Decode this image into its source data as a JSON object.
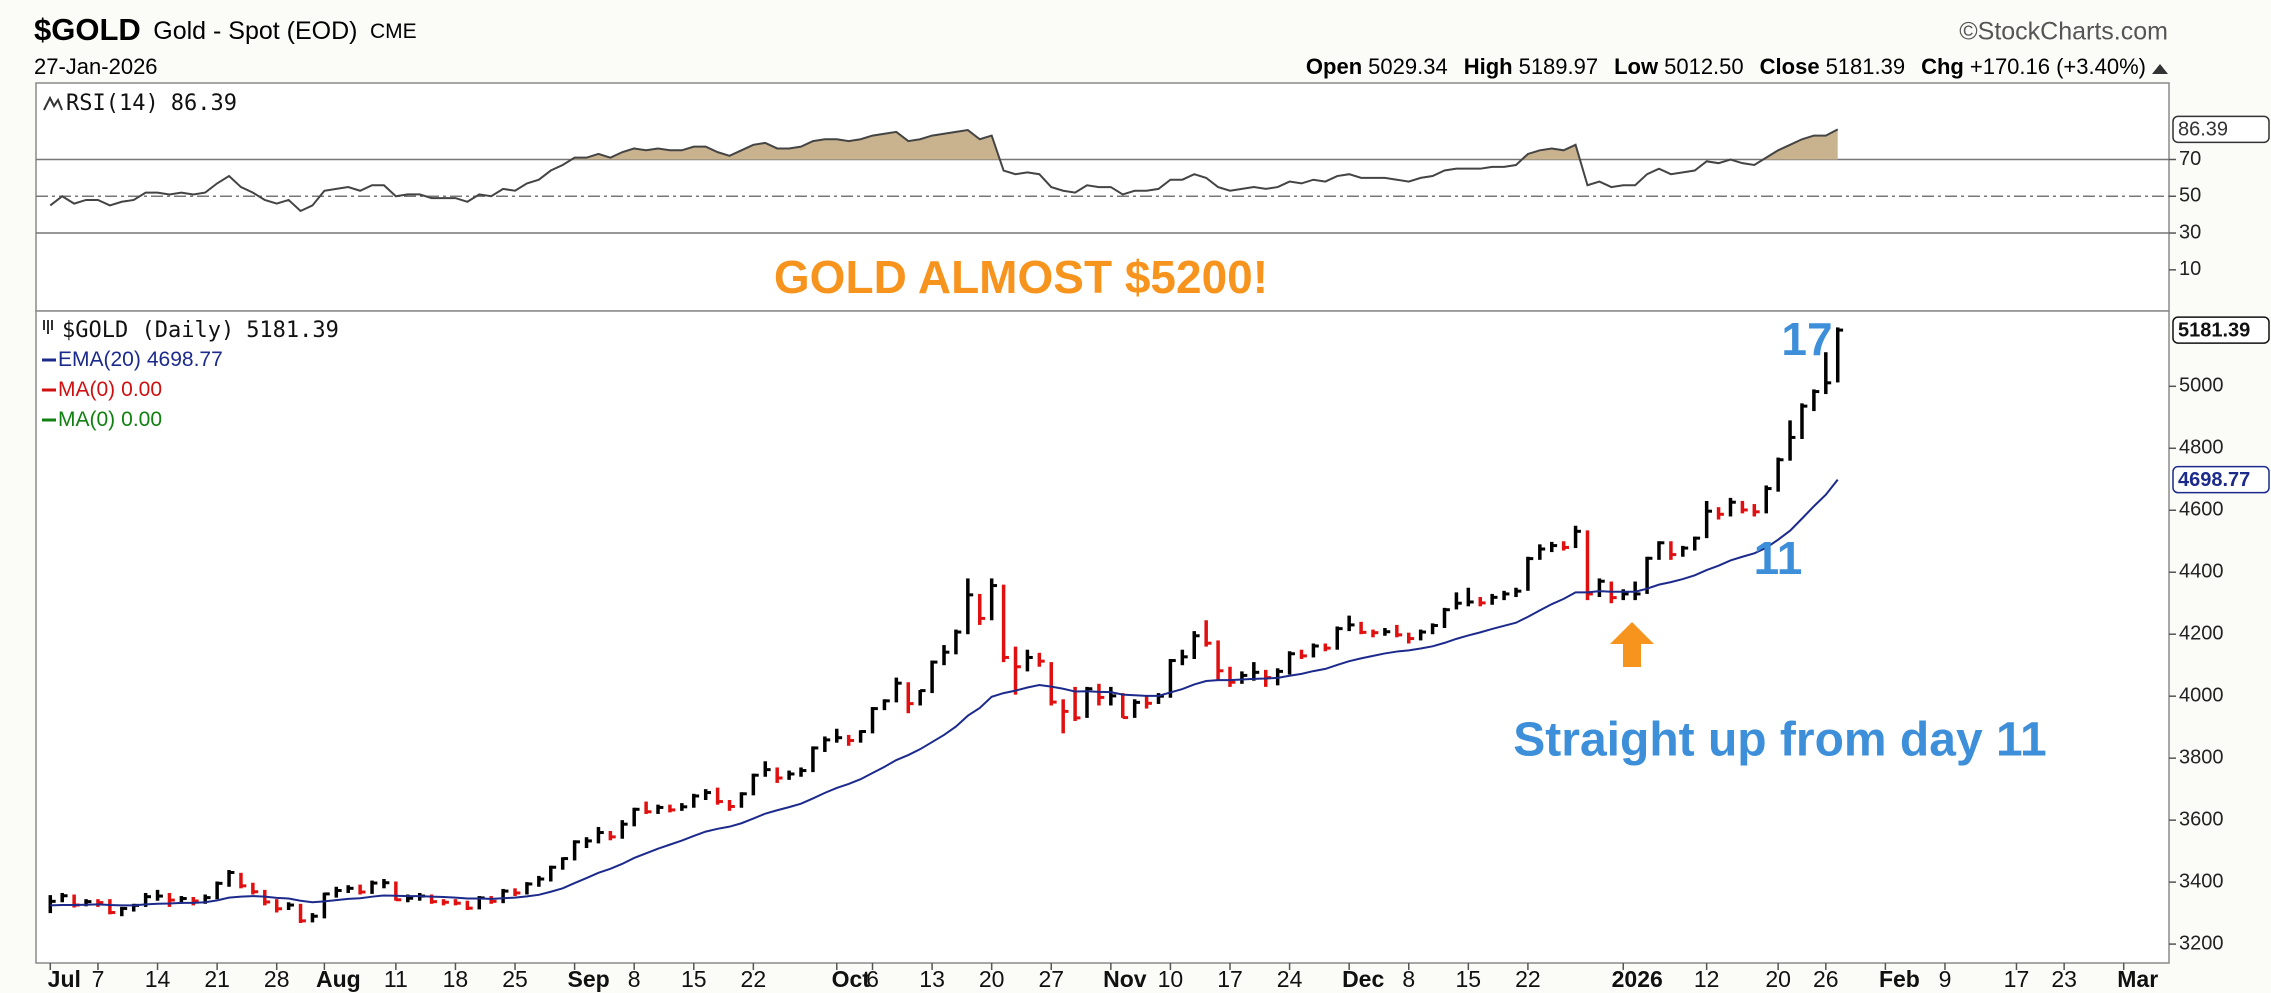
{
  "header": {
    "symbol": "$GOLD",
    "name": "Gold - Spot (EOD)",
    "exchange": "CME",
    "date": "27-Jan-2026",
    "source": "©StockCharts.com",
    "quote": [
      {
        "label": "Open",
        "value": "5029.34"
      },
      {
        "label": "High",
        "value": "5189.97"
      },
      {
        "label": "Low",
        "value": "5012.50"
      },
      {
        "label": "Close",
        "value": "5181.39"
      },
      {
        "label": "Chg",
        "value": "+170.16 (+3.40%)"
      }
    ]
  },
  "chart_data": [
    {
      "type": "line",
      "xlim": [
        -1.2,
        177.8
      ],
      "ylim": [
        -12.4,
        111.6
      ],
      "yticks": [
        10,
        30,
        50,
        70
      ],
      "ref_lines": [
        {
          "value": 70,
          "style": "solid"
        },
        {
          "value": 50,
          "style": "dashdot"
        },
        {
          "value": 30,
          "style": "solid"
        }
      ],
      "fill_above": 70,
      "fill_color": "#c9b38f",
      "annotations": [
        "GOLD ALMOST $5200!"
      ],
      "series": [
        {
          "name": "RSI(14)",
          "color": "#444444",
          "values": [
            45,
            50,
            46,
            48,
            48,
            45,
            47,
            48,
            52,
            52,
            51,
            52,
            51,
            52,
            57,
            61,
            55,
            52,
            48,
            46,
            48,
            42,
            45,
            53,
            54,
            55,
            53,
            56,
            56,
            50,
            51,
            51,
            49,
            49,
            49,
            47,
            51,
            50,
            54,
            53,
            57,
            59,
            64,
            67,
            71,
            71,
            73,
            71,
            74,
            76,
            75,
            76,
            75,
            75,
            77,
            77,
            74,
            72,
            75,
            78,
            79,
            76,
            76,
            77,
            80,
            81,
            81,
            80,
            81,
            83,
            84,
            85,
            80,
            81,
            83,
            84,
            85,
            86,
            81,
            83,
            64,
            62,
            63,
            62,
            55,
            53,
            52,
            56,
            55,
            55,
            51,
            53,
            53,
            54,
            59,
            59,
            62,
            60,
            55,
            53,
            54,
            55,
            54,
            55,
            58,
            57,
            59,
            58,
            61,
            62,
            60,
            60,
            60,
            59,
            58,
            60,
            61,
            64,
            65,
            65,
            65,
            66,
            66,
            67,
            73,
            75,
            76,
            75,
            78,
            56,
            58,
            55,
            56,
            56,
            62,
            65,
            62,
            63,
            64,
            69,
            68,
            70,
            68,
            67,
            71,
            75,
            78,
            81,
            83,
            83,
            86.39
          ]
        }
      ]
    },
    {
      "type": "ohlc",
      "xlim": [
        -1.2,
        177.8
      ],
      "ylim": [
        3139,
        5243
      ],
      "yticks": [
        3200,
        3400,
        3600,
        3800,
        4000,
        4200,
        4400,
        4600,
        4800,
        5000
      ],
      "xticks": [
        {
          "value": 0,
          "label": "Jul"
        },
        {
          "value": 4,
          "label": "7"
        },
        {
          "value": 9,
          "label": "14"
        },
        {
          "value": 14,
          "label": "21"
        },
        {
          "value": 19,
          "label": "28"
        },
        {
          "value": 23,
          "label": "Aug"
        },
        {
          "value": 29,
          "label": "11"
        },
        {
          "value": 34,
          "label": "18"
        },
        {
          "value": 39,
          "label": "25"
        },
        {
          "value": 44,
          "label": "Sep"
        },
        {
          "value": 49,
          "label": "8"
        },
        {
          "value": 54,
          "label": "15"
        },
        {
          "value": 59,
          "label": "22"
        },
        {
          "value": 66,
          "label": "Oct"
        },
        {
          "value": 69,
          "label": "6"
        },
        {
          "value": 74,
          "label": "13"
        },
        {
          "value": 79,
          "label": "20"
        },
        {
          "value": 84,
          "label": "27"
        },
        {
          "value": 89,
          "label": "Nov"
        },
        {
          "value": 94,
          "label": "10"
        },
        {
          "value": 99,
          "label": "17"
        },
        {
          "value": 104,
          "label": "24"
        },
        {
          "value": 109,
          "label": "Dec"
        },
        {
          "value": 114,
          "label": "8"
        },
        {
          "value": 119,
          "label": "15"
        },
        {
          "value": 124,
          "label": "22"
        },
        {
          "value": 132,
          "label": "2026"
        },
        {
          "value": 139,
          "label": "12"
        },
        {
          "value": 145,
          "label": "20"
        },
        {
          "value": 149,
          "label": "26"
        },
        {
          "value": 154,
          "label": "Feb"
        },
        {
          "value": 159,
          "label": "9"
        },
        {
          "value": 165,
          "label": "17"
        },
        {
          "value": 169,
          "label": "23"
        },
        {
          "value": 174,
          "label": "Mar"
        }
      ],
      "annotations": [
        "17",
        "11",
        "Straight up from day 11"
      ],
      "legend_extra": [
        {
          "name": "MA(0)",
          "label": "0.00",
          "color": "#d01010"
        },
        {
          "name": "MA(0)",
          "label": "0.00",
          "color": "#108010"
        }
      ],
      "series": [
        {
          "name": "$GOLD (Daily)",
          "up_color": "#000000",
          "down_color": "#e01010",
          "values": [
            3338,
            3356,
            3326,
            3337,
            3334,
            3302,
            3315,
            3325,
            3353,
            3355,
            3342,
            3347,
            3339,
            3350,
            3396,
            3431,
            3388,
            3369,
            3336,
            3314,
            3326,
            3275,
            3290,
            3362,
            3373,
            3380,
            3368,
            3397,
            3398,
            3343,
            3348,
            3355,
            3337,
            3335,
            3332,
            3316,
            3349,
            3338,
            3371,
            3365,
            3394,
            3410,
            3448,
            3476,
            3530,
            3533,
            3560,
            3546,
            3587,
            3635,
            3627,
            3641,
            3633,
            3643,
            3678,
            3689,
            3660,
            3644,
            3685,
            3745,
            3763,
            3736,
            3749,
            3760,
            3833,
            3859,
            3866,
            3857,
            3886,
            3960,
            3985,
            4042,
            3976,
            4018,
            4110,
            4142,
            4207,
            4327,
            4251,
            4357,
            4125,
            4095,
            4125,
            4113,
            3981,
            3951,
            3930,
            4024,
            3996,
            4001,
            3931,
            3980,
            3977,
            4000,
            4115,
            4127,
            4195,
            4171,
            4082,
            4045,
            4067,
            4077,
            4060,
            4080,
            4137,
            4130,
            4162,
            4155,
            4218,
            4230,
            4206,
            4205,
            4208,
            4198,
            4186,
            4207,
            4228,
            4279,
            4300,
            4304,
            4301,
            4319,
            4330,
            4339,
            4444,
            4475,
            4486,
            4480,
            4532,
            4330,
            4371,
            4318,
            4330,
            4330,
            4445,
            4495,
            4457,
            4478,
            4510,
            4597,
            4587,
            4626,
            4601,
            4595,
            4670,
            4763,
            4835,
            4936,
            4983,
            5011.23,
            5181.39
          ],
          "highs": [
            3358,
            3365,
            3360,
            3345,
            3345,
            3345,
            3320,
            3330,
            3365,
            3375,
            3365,
            3355,
            3352,
            3360,
            3402,
            3439,
            3430,
            3398,
            3375,
            3345,
            3335,
            3330,
            3300,
            3366,
            3385,
            3390,
            3392,
            3405,
            3410,
            3402,
            3360,
            3365,
            3360,
            3345,
            3345,
            3340,
            3355,
            3355,
            3378,
            3380,
            3400,
            3420,
            3453,
            3480,
            3535,
            3545,
            3578,
            3565,
            3600,
            3640,
            3660,
            3650,
            3650,
            3655,
            3685,
            3700,
            3705,
            3665,
            3690,
            3750,
            3790,
            3770,
            3760,
            3770,
            3838,
            3870,
            3895,
            3875,
            3890,
            3965,
            3990,
            4060,
            4045,
            4020,
            4115,
            4165,
            4215,
            4380,
            4330,
            4380,
            4360,
            4160,
            4150,
            4140,
            4110,
            3990,
            4030,
            4030,
            4040,
            4030,
            4010,
            3990,
            4000,
            4010,
            4120,
            4150,
            4210,
            4245,
            4180,
            4095,
            4080,
            4110,
            4085,
            4090,
            4145,
            4150,
            4170,
            4170,
            4225,
            4260,
            4240,
            4215,
            4220,
            4230,
            4205,
            4215,
            4235,
            4285,
            4335,
            4350,
            4320,
            4330,
            4340,
            4350,
            4450,
            4490,
            4498,
            4500,
            4550,
            4535,
            4380,
            4370,
            4345,
            4370,
            4450,
            4500,
            4500,
            4485,
            4515,
            4630,
            4610,
            4640,
            4630,
            4620,
            4680,
            4770,
            4890,
            4945,
            4990,
            5110,
            5189.97
          ],
          "lows": [
            3300,
            3335,
            3318,
            3322,
            3320,
            3296,
            3290,
            3305,
            3320,
            3340,
            3320,
            3330,
            3325,
            3330,
            3345,
            3385,
            3380,
            3360,
            3325,
            3302,
            3310,
            3268,
            3270,
            3283,
            3350,
            3365,
            3360,
            3362,
            3380,
            3340,
            3335,
            3340,
            3330,
            3325,
            3325,
            3310,
            3312,
            3330,
            3332,
            3355,
            3360,
            3385,
            3402,
            3440,
            3470,
            3510,
            3525,
            3535,
            3540,
            3580,
            3620,
            3620,
            3625,
            3630,
            3640,
            3665,
            3650,
            3630,
            3640,
            3680,
            3740,
            3720,
            3730,
            3740,
            3755,
            3820,
            3850,
            3840,
            3850,
            3880,
            3955,
            3980,
            3945,
            3970,
            4010,
            4100,
            4135,
            4200,
            4230,
            4245,
            4110,
            4005,
            4080,
            4095,
            3970,
            3880,
            3920,
            3930,
            3970,
            3970,
            3930,
            3930,
            3960,
            3975,
            3995,
            4100,
            4120,
            4160,
            4050,
            4030,
            4040,
            4050,
            4030,
            4035,
            4070,
            4120,
            4125,
            4145,
            4150,
            4210,
            4200,
            4190,
            4195,
            4190,
            4170,
            4180,
            4200,
            4220,
            4280,
            4290,
            4290,
            4295,
            4310,
            4320,
            4340,
            4440,
            4465,
            4470,
            4478,
            4310,
            4320,
            4300,
            4310,
            4310,
            4330,
            4440,
            4440,
            4450,
            4470,
            4510,
            4570,
            4580,
            4590,
            4580,
            4590,
            4660,
            4760,
            4830,
            4920,
            4975,
            5012.5
          ]
        },
        {
          "name": "EMA(20)",
          "color": "#1c2a8c",
          "values": [
            3325,
            3326,
            3326,
            3327,
            3328,
            3326,
            3325,
            3325,
            3328,
            3330,
            3331,
            3333,
            3333,
            3335,
            3341,
            3350,
            3353,
            3355,
            3353,
            3349,
            3347,
            3340,
            3335,
            3338,
            3342,
            3346,
            3348,
            3353,
            3357,
            3356,
            3355,
            3355,
            3353,
            3352,
            3350,
            3347,
            3347,
            3346,
            3348,
            3350,
            3354,
            3359,
            3369,
            3380,
            3397,
            3413,
            3430,
            3443,
            3459,
            3478,
            3493,
            3508,
            3521,
            3534,
            3549,
            3563,
            3572,
            3579,
            3590,
            3605,
            3621,
            3632,
            3642,
            3653,
            3670,
            3688,
            3704,
            3717,
            3732,
            3752,
            3772,
            3794,
            3810,
            3829,
            3852,
            3875,
            3902,
            3937,
            3962,
            3998,
            4010,
            4018,
            4028,
            4036,
            4031,
            4024,
            4015,
            4016,
            4014,
            4013,
            4005,
            4003,
            4001,
            4001,
            4012,
            4023,
            4038,
            4049,
            4052,
            4052,
            4054,
            4056,
            4057,
            4059,
            4066,
            4072,
            4081,
            4088,
            4101,
            4113,
            4122,
            4130,
            4138,
            4144,
            4148,
            4154,
            4161,
            4172,
            4185,
            4196,
            4206,
            4217,
            4227,
            4237,
            4256,
            4277,
            4297,
            4314,
            4335,
            4335,
            4339,
            4337,
            4337,
            4337,
            4347,
            4360,
            4368,
            4378,
            4390,
            4407,
            4421,
            4438,
            4450,
            4461,
            4479,
            4505,
            4534,
            4573,
            4613,
            4650,
            4698.77
          ]
        }
      ]
    }
  ]
}
